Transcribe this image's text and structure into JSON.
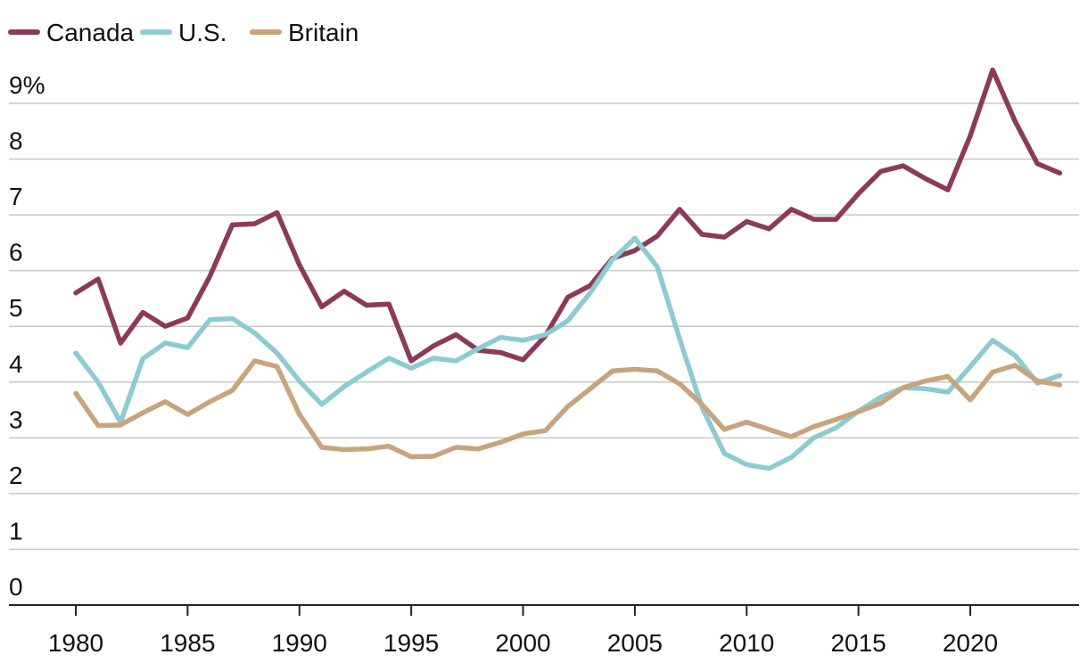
{
  "chart_data": {
    "type": "line",
    "title": "",
    "xlabel": "",
    "ylabel": "",
    "ylim": [
      0,
      9.6
    ],
    "xlim": [
      1977.5,
      2025
    ],
    "grid": true,
    "legend_position": "top-left",
    "yticks": [
      {
        "value": 0,
        "label": "0"
      },
      {
        "value": 1,
        "label": "1"
      },
      {
        "value": 2,
        "label": "2"
      },
      {
        "value": 3,
        "label": "3"
      },
      {
        "value": 4,
        "label": "4"
      },
      {
        "value": 5,
        "label": "5"
      },
      {
        "value": 6,
        "label": "6"
      },
      {
        "value": 7,
        "label": "7"
      },
      {
        "value": 8,
        "label": "8"
      },
      {
        "value": 9,
        "label": "9%"
      }
    ],
    "xticks": [
      {
        "value": 1980,
        "label": "1980"
      },
      {
        "value": 1985,
        "label": "1985"
      },
      {
        "value": 1990,
        "label": "1990"
      },
      {
        "value": 1995,
        "label": "1995"
      },
      {
        "value": 2000,
        "label": "2000"
      },
      {
        "value": 2005,
        "label": "2005"
      },
      {
        "value": 2010,
        "label": "2010"
      },
      {
        "value": 2015,
        "label": "2015"
      },
      {
        "value": 2020,
        "label": "2020"
      }
    ],
    "x": [
      1980,
      1981,
      1982,
      1983,
      1984,
      1985,
      1986,
      1987,
      1988,
      1989,
      1990,
      1991,
      1992,
      1993,
      1994,
      1995,
      1996,
      1997,
      1998,
      1999,
      2000,
      2001,
      2002,
      2003,
      2004,
      2005,
      2006,
      2007,
      2008,
      2009,
      2010,
      2011,
      2012,
      2013,
      2014,
      2015,
      2016,
      2017,
      2018,
      2019,
      2020,
      2021,
      2022,
      2023,
      2024
    ],
    "series": [
      {
        "name": "Canada",
        "color": "#8B3A5B",
        "values": [
          5.6,
          5.85,
          4.7,
          5.25,
          5.0,
          5.15,
          5.9,
          6.82,
          6.84,
          7.04,
          6.1,
          5.35,
          5.63,
          5.38,
          5.4,
          4.38,
          4.65,
          4.85,
          4.57,
          4.53,
          4.4,
          4.83,
          5.52,
          5.73,
          6.22,
          6.36,
          6.62,
          7.1,
          6.65,
          6.6,
          6.88,
          6.75,
          7.1,
          6.92,
          6.92,
          7.38,
          7.78,
          7.88,
          7.65,
          7.45,
          8.42,
          9.6,
          8.68,
          7.92,
          7.75
        ]
      },
      {
        "name": "U.S.",
        "color": "#8DCBD1",
        "values": [
          4.52,
          4.0,
          3.28,
          4.42,
          4.7,
          4.62,
          5.12,
          5.14,
          4.88,
          4.52,
          4.02,
          3.6,
          3.92,
          4.18,
          4.43,
          4.25,
          4.43,
          4.38,
          4.6,
          4.8,
          4.75,
          4.85,
          5.1,
          5.6,
          6.2,
          6.58,
          6.07,
          4.78,
          3.55,
          2.72,
          2.52,
          2.45,
          2.65,
          3.0,
          3.18,
          3.48,
          3.73,
          3.9,
          3.88,
          3.82,
          4.28,
          4.75,
          4.48,
          3.98,
          4.12
        ]
      },
      {
        "name": "Britain",
        "color": "#C8A47E",
        "values": [
          3.8,
          3.22,
          3.23,
          3.45,
          3.65,
          3.42,
          3.65,
          3.85,
          4.38,
          4.28,
          3.42,
          2.83,
          2.79,
          2.8,
          2.85,
          2.66,
          2.67,
          2.83,
          2.8,
          2.92,
          3.07,
          3.13,
          3.56,
          3.88,
          4.2,
          4.23,
          4.2,
          3.97,
          3.6,
          3.15,
          3.28,
          3.15,
          3.02,
          3.2,
          3.33,
          3.47,
          3.62,
          3.9,
          4.02,
          4.1,
          3.68,
          4.18,
          4.3,
          4.02,
          3.95
        ]
      }
    ]
  }
}
